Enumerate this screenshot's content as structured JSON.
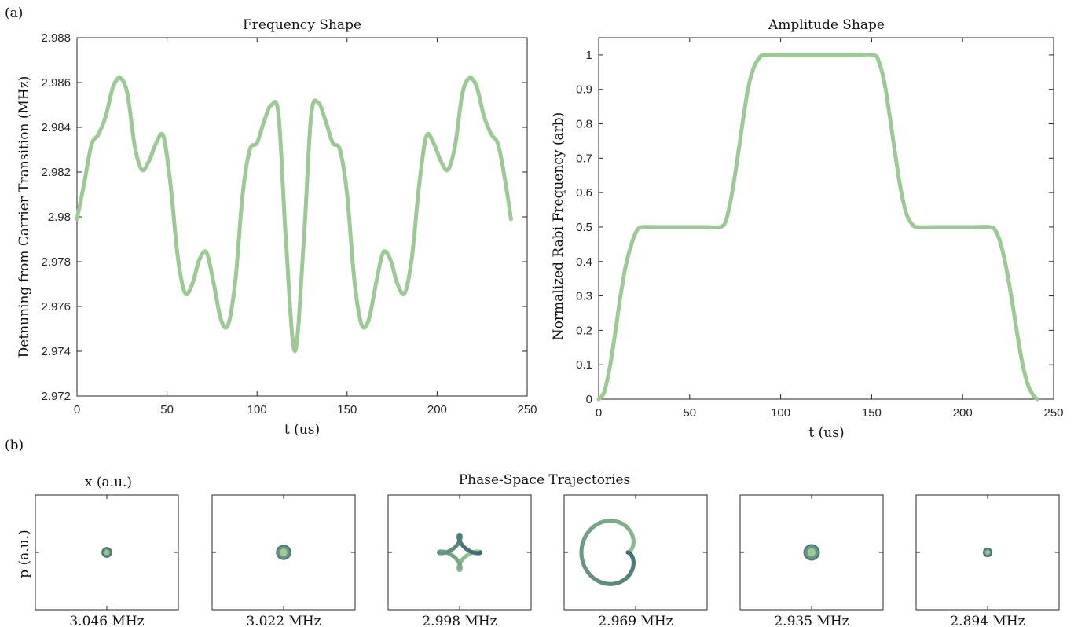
{
  "panel_labels": {
    "a": "(a)",
    "b": "(b)"
  },
  "chart_data": [
    {
      "type": "line",
      "title": "Frequency Shape",
      "xlabel": "t (us)",
      "ylabel": "Detnuning from Carrier Transition (MHz)",
      "xlim": [
        0,
        250
      ],
      "ylim": [
        2.972,
        2.988
      ],
      "xticks": [
        "0",
        "50",
        "100",
        "150",
        "200",
        "250"
      ],
      "yticks": [
        "2.972",
        "2.974",
        "2.976",
        "2.978",
        "2.98",
        "2.982",
        "2.984",
        "2.986",
        "2.988"
      ],
      "color": "#9dc994",
      "series": [
        {
          "x": [
            0,
            4,
            8,
            12,
            16,
            20,
            24,
            28,
            32,
            36,
            40,
            44,
            48,
            52,
            56,
            60,
            64,
            68,
            72,
            76,
            80,
            84,
            88,
            92,
            96,
            100,
            104,
            108,
            112,
            116,
            121,
            126,
            130,
            134,
            138,
            142,
            146,
            150,
            154,
            158,
            162,
            166,
            170,
            174,
            178,
            182,
            186,
            190,
            194,
            198,
            202,
            206,
            210,
            214,
            218,
            222,
            226,
            230,
            234,
            238,
            241
          ],
          "y": [
            2.9799,
            2.9815,
            2.9832,
            2.9837,
            2.9845,
            2.9858,
            2.9862,
            2.9855,
            2.9832,
            2.9821,
            2.9825,
            2.9833,
            2.9836,
            2.9814,
            2.9782,
            2.9766,
            2.977,
            2.9781,
            2.9784,
            2.977,
            2.9754,
            2.9752,
            2.9772,
            2.981,
            2.983,
            2.9833,
            2.9843,
            2.985,
            2.9845,
            2.979,
            2.974,
            2.979,
            2.9845,
            2.9851,
            2.9843,
            2.9833,
            2.983,
            2.981,
            2.9772,
            2.9752,
            2.9754,
            2.977,
            2.9784,
            2.9781,
            2.977,
            2.9766,
            2.9782,
            2.9814,
            2.9836,
            2.9833,
            2.9825,
            2.9821,
            2.9832,
            2.9855,
            2.9862,
            2.9858,
            2.9845,
            2.9837,
            2.9832,
            2.9815,
            2.9799
          ]
        }
      ]
    },
    {
      "type": "line",
      "title": "Amplitude Shape",
      "xlabel": "t (us)",
      "ylabel": "Normalized Rabi Frequency (arb)",
      "xlim": [
        0,
        250
      ],
      "ylim": [
        0,
        1.05
      ],
      "xticks": [
        "0",
        "50",
        "100",
        "150",
        "200",
        "250"
      ],
      "yticks": [
        "0",
        "0.1",
        "0.2",
        "0.3",
        "0.4",
        "0.5",
        "0.6",
        "0.7",
        "0.8",
        "0.9",
        "1"
      ],
      "color": "#9dc994",
      "series": [
        {
          "x": [
            0,
            3,
            6,
            9,
            12,
            15,
            18,
            21,
            24,
            30,
            40,
            50,
            60,
            67,
            70,
            73,
            76,
            79,
            82,
            85,
            88,
            91,
            100,
            110,
            120,
            130,
            140,
            151,
            154,
            157,
            160,
            163,
            166,
            169,
            172,
            175,
            185,
            195,
            205,
            215,
            218,
            221,
            224,
            227,
            230,
            233,
            236,
            239,
            241
          ],
          "y": [
            0,
            0.02,
            0.09,
            0.19,
            0.3,
            0.39,
            0.45,
            0.49,
            0.5,
            0.5,
            0.5,
            0.5,
            0.5,
            0.5,
            0.52,
            0.59,
            0.69,
            0.8,
            0.9,
            0.96,
            0.99,
            1.0,
            1.0,
            1.0,
            1.0,
            1.0,
            1.0,
            1.0,
            0.98,
            0.92,
            0.82,
            0.71,
            0.61,
            0.54,
            0.51,
            0.5,
            0.5,
            0.5,
            0.5,
            0.5,
            0.49,
            0.45,
            0.38,
            0.29,
            0.19,
            0.1,
            0.04,
            0.01,
            0
          ]
        }
      ]
    },
    {
      "type": "scatter",
      "title": "Phase-Space Trajectories",
      "xlabel": "x (a.u.)",
      "ylabel": "p (a.u.)",
      "panels": [
        {
          "label": "3.046 MHz",
          "radius": 0.08
        },
        {
          "label": "3.022 MHz",
          "radius": 0.12
        },
        {
          "label": "2.998 MHz",
          "radius": 0.33
        },
        {
          "label": "2.969 MHz",
          "radius": 0.85
        },
        {
          "label": "2.935 MHz",
          "radius": 0.13
        },
        {
          "label": "2.894 MHz",
          "radius": 0.07
        }
      ],
      "colors": {
        "start": "#9dc994",
        "end": "#3d6b73"
      }
    }
  ]
}
